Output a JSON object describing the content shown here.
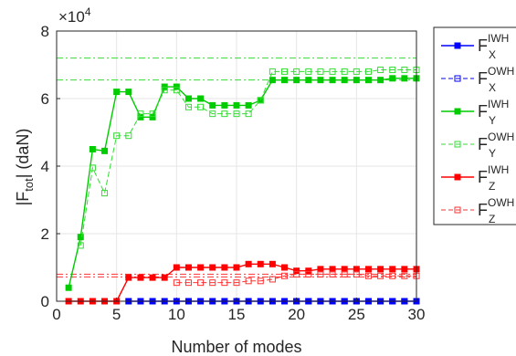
{
  "chart_data": {
    "type": "line",
    "title": "",
    "xlabel": "Number of modes",
    "ylabel": {
      "main": "|F",
      "sub": "tot",
      "rest": "| (daN)"
    },
    "multiplier": {
      "base": "×10",
      "exp": "4"
    },
    "xlim": [
      0,
      30
    ],
    "ylim": [
      0,
      8
    ],
    "xticks": [
      0,
      5,
      10,
      15,
      20,
      25,
      30
    ],
    "yticks": [
      0,
      2,
      4,
      6,
      8
    ],
    "grid": true,
    "legend_position": "outside-right",
    "x": [
      1,
      2,
      3,
      4,
      5,
      6,
      7,
      8,
      9,
      10,
      11,
      12,
      13,
      14,
      15,
      16,
      17,
      18,
      19,
      20,
      21,
      22,
      23,
      24,
      25,
      26,
      27,
      28,
      29,
      30
    ],
    "series": [
      {
        "name": "F",
        "sub": "X",
        "sup": "IWH",
        "color": "#0000ff",
        "dash": "solid",
        "marker": "filled",
        "values": [
          null,
          null,
          null,
          null,
          null,
          0,
          0,
          0,
          0,
          0,
          0,
          0,
          0,
          0,
          0,
          0,
          0,
          0,
          0,
          0,
          0,
          0,
          0,
          0,
          0,
          0,
          0,
          0,
          0,
          0
        ]
      },
      {
        "name": "F",
        "sub": "X",
        "sup": "OWH",
        "color": "#0000ff",
        "dash": "dashed",
        "marker": "open",
        "values": [
          null,
          null,
          null,
          null,
          null,
          null,
          null,
          null,
          null,
          null,
          null,
          null,
          null,
          null,
          null,
          null,
          null,
          null,
          null,
          0,
          0,
          0,
          0,
          0,
          0,
          0,
          0,
          0,
          0,
          0
        ]
      },
      {
        "name": "F",
        "sub": "Y",
        "sup": "IWH",
        "color": "#00cc00",
        "dash": "solid",
        "marker": "filled",
        "values": [
          0.4,
          1.9,
          4.5,
          4.45,
          6.2,
          6.2,
          5.45,
          5.45,
          6.35,
          6.35,
          6.0,
          6.0,
          5.8,
          5.8,
          5.8,
          5.8,
          5.95,
          6.55,
          6.55,
          6.55,
          6.55,
          6.55,
          6.55,
          6.55,
          6.55,
          6.55,
          6.55,
          6.6,
          6.6,
          6.6
        ]
      },
      {
        "name": "F",
        "sub": "Y",
        "sup": "OWH",
        "color": "#33dd33",
        "dash": "dashed",
        "marker": "open",
        "values": [
          null,
          1.65,
          3.95,
          3.2,
          4.9,
          4.9,
          5.55,
          5.55,
          6.25,
          6.25,
          5.75,
          5.75,
          5.55,
          5.55,
          5.55,
          5.55,
          5.95,
          6.8,
          6.8,
          6.8,
          6.8,
          6.8,
          6.8,
          6.8,
          6.8,
          6.8,
          6.85,
          6.85,
          6.85,
          6.85
        ]
      },
      {
        "name": "F",
        "sub": "Z",
        "sup": "IWH",
        "color": "#ff0000",
        "dash": "solid",
        "marker": "filled",
        "values": [
          0,
          0,
          0,
          0,
          0,
          0.7,
          0.7,
          0.7,
          0.7,
          1.0,
          1.0,
          1.0,
          1.0,
          1.0,
          1.0,
          1.1,
          1.1,
          1.1,
          1.0,
          0.9,
          0.9,
          0.95,
          0.95,
          0.95,
          0.95,
          0.95,
          0.95,
          0.95,
          0.95,
          0.95
        ]
      },
      {
        "name": "F",
        "sub": "Z",
        "sup": "OWH",
        "color": "#ff3333",
        "dash": "dashed",
        "marker": "open",
        "values": [
          null,
          null,
          null,
          null,
          null,
          null,
          null,
          null,
          null,
          0.55,
          0.55,
          0.55,
          0.55,
          0.55,
          0.55,
          0.6,
          0.6,
          0.65,
          0.75,
          0.8,
          0.8,
          0.8,
          0.8,
          0.8,
          0.8,
          0.75,
          0.75,
          0.75,
          0.75,
          0.75
        ]
      }
    ],
    "reference_lines": [
      {
        "y": 7.2,
        "color": "#33dd33"
      },
      {
        "y": 6.55,
        "color": "#33dd33"
      },
      {
        "y": 0.8,
        "color": "#ff3333"
      },
      {
        "y": 0.72,
        "color": "#ff3333"
      }
    ]
  }
}
